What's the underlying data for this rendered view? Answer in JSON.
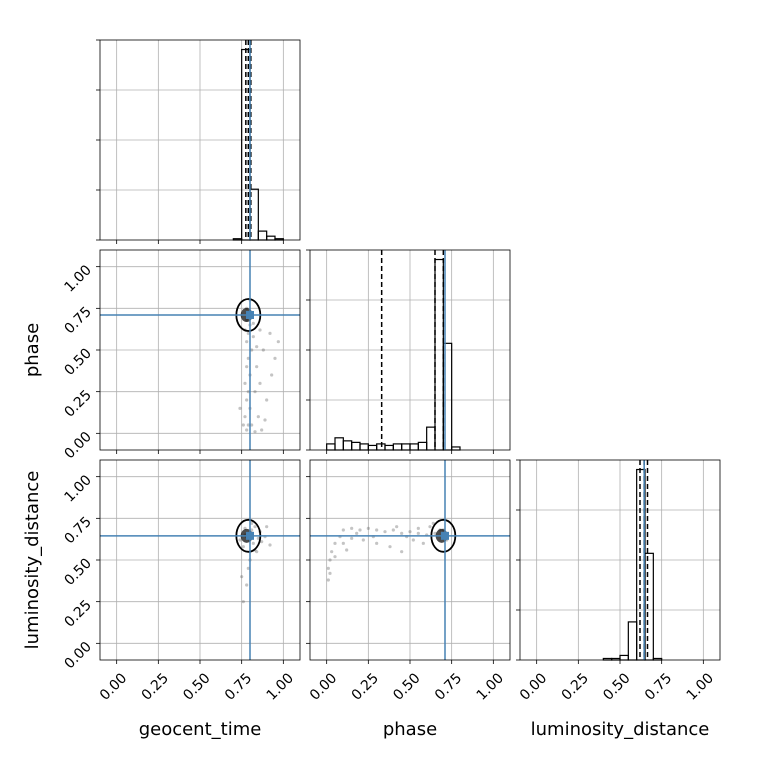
{
  "chart_data": {
    "type": "corner",
    "parameters": [
      {
        "name": "geocent_time",
        "label": "geocent_time",
        "truth": 0.8,
        "quantiles": [
          0.775,
          0.79,
          0.805
        ]
      },
      {
        "name": "phase",
        "label": "phase",
        "truth": 0.71,
        "quantiles": [
          0.33,
          0.65,
          0.7
        ]
      },
      {
        "name": "luminosity_distance",
        "label": "luminosity_distance",
        "truth": 0.645,
        "quantiles": [
          0.62,
          0.645,
          0.665
        ]
      }
    ],
    "xlim": [
      -0.1,
      1.1
    ],
    "ylim": [
      -0.1,
      1.1
    ],
    "ticks": [
      0.0,
      0.25,
      0.5,
      0.75,
      1.0
    ],
    "tick_labels": [
      "0.00",
      "0.25",
      "0.50",
      "0.75",
      "1.00"
    ],
    "truth_color": "#4682b4",
    "line_color": "#000000",
    "scatter_color": "#555555",
    "grid": true,
    "histograms": [
      {
        "parameter": "geocent_time",
        "bins": [
          {
            "lo": 0.7,
            "hi": 0.75,
            "v": 1
          },
          {
            "lo": 0.75,
            "hi": 0.8,
            "v": 150
          },
          {
            "lo": 0.8,
            "hi": 0.85,
            "v": 40
          },
          {
            "lo": 0.85,
            "hi": 0.9,
            "v": 7
          },
          {
            "lo": 0.9,
            "hi": 0.95,
            "v": 3
          },
          {
            "lo": 0.95,
            "hi": 1.0,
            "v": 1
          }
        ]
      },
      {
        "parameter": "phase",
        "bins": [
          {
            "lo": 0.0,
            "hi": 0.05,
            "v": 4
          },
          {
            "lo": 0.05,
            "hi": 0.1,
            "v": 8
          },
          {
            "lo": 0.1,
            "hi": 0.15,
            "v": 6
          },
          {
            "lo": 0.15,
            "hi": 0.2,
            "v": 5
          },
          {
            "lo": 0.2,
            "hi": 0.25,
            "v": 4
          },
          {
            "lo": 0.25,
            "hi": 0.3,
            "v": 3
          },
          {
            "lo": 0.3,
            "hi": 0.35,
            "v": 4
          },
          {
            "lo": 0.35,
            "hi": 0.4,
            "v": 3
          },
          {
            "lo": 0.4,
            "hi": 0.45,
            "v": 4
          },
          {
            "lo": 0.45,
            "hi": 0.5,
            "v": 4
          },
          {
            "lo": 0.5,
            "hi": 0.55,
            "v": 4
          },
          {
            "lo": 0.55,
            "hi": 0.6,
            "v": 5
          },
          {
            "lo": 0.6,
            "hi": 0.65,
            "v": 15
          },
          {
            "lo": 0.65,
            "hi": 0.7,
            "v": 125
          },
          {
            "lo": 0.7,
            "hi": 0.75,
            "v": 70
          },
          {
            "lo": 0.75,
            "hi": 0.8,
            "v": 2
          }
        ]
      },
      {
        "parameter": "luminosity_distance",
        "bins": [
          {
            "lo": 0.4,
            "hi": 0.45,
            "v": 1
          },
          {
            "lo": 0.45,
            "hi": 0.5,
            "v": 1
          },
          {
            "lo": 0.5,
            "hi": 0.55,
            "v": 3
          },
          {
            "lo": 0.55,
            "hi": 0.6,
            "v": 25
          },
          {
            "lo": 0.6,
            "hi": 0.65,
            "v": 125
          },
          {
            "lo": 0.65,
            "hi": 0.7,
            "v": 70
          },
          {
            "lo": 0.7,
            "hi": 0.75,
            "v": 1
          }
        ]
      }
    ],
    "scatter_panels": [
      {
        "x": "geocent_time",
        "y": "phase",
        "points": [
          [
            0.78,
            0.02
          ],
          [
            0.79,
            0.05
          ],
          [
            0.77,
            0.1
          ],
          [
            0.8,
            0.15
          ],
          [
            0.78,
            0.2
          ],
          [
            0.79,
            0.25
          ],
          [
            0.77,
            0.3
          ],
          [
            0.8,
            0.35
          ],
          [
            0.78,
            0.4
          ],
          [
            0.79,
            0.45
          ],
          [
            0.81,
            0.5
          ],
          [
            0.78,
            0.55
          ],
          [
            0.79,
            0.6
          ],
          [
            0.8,
            0.65
          ],
          [
            0.78,
            0.68
          ],
          [
            0.79,
            0.7
          ],
          [
            0.8,
            0.72
          ],
          [
            0.77,
            0.62
          ],
          [
            0.82,
            0.58
          ],
          [
            0.84,
            0.4
          ],
          [
            0.86,
            0.3
          ],
          [
            0.88,
            0.5
          ],
          [
            0.9,
            0.2
          ],
          [
            0.92,
            0.6
          ],
          [
            0.85,
            0.1
          ],
          [
            0.83,
            0.25
          ],
          [
            0.76,
            0.05
          ],
          [
            0.95,
            0.45
          ],
          [
            0.97,
            0.55
          ],
          [
            0.74,
            0.15
          ],
          [
            0.81,
            0.05
          ],
          [
            0.83,
            0.01
          ],
          [
            0.87,
            0.02
          ],
          [
            0.89,
            0.08
          ],
          [
            0.93,
            0.35
          ],
          [
            0.8,
            0.8
          ],
          [
            0.78,
            0.75
          ],
          [
            0.82,
            0.66
          ],
          [
            0.84,
            0.52
          ],
          [
            0.86,
            0.62
          ]
        ]
      },
      {
        "x": "geocent_time",
        "y": "luminosity_distance",
        "points": [
          [
            0.78,
            0.64
          ],
          [
            0.79,
            0.66
          ],
          [
            0.8,
            0.62
          ],
          [
            0.81,
            0.68
          ],
          [
            0.77,
            0.65
          ],
          [
            0.82,
            0.6
          ],
          [
            0.83,
            0.7
          ],
          [
            0.76,
            0.58
          ],
          [
            0.84,
            0.55
          ],
          [
            0.85,
            0.63
          ],
          [
            0.86,
            0.67
          ],
          [
            0.8,
            0.5
          ],
          [
            0.79,
            0.45
          ],
          [
            0.78,
            0.35
          ],
          [
            0.76,
            0.25
          ],
          [
            0.75,
            0.4
          ],
          [
            0.81,
            0.72
          ],
          [
            0.83,
            0.56
          ],
          [
            0.87,
            0.61
          ],
          [
            0.89,
            0.64
          ],
          [
            0.92,
            0.59
          ],
          [
            0.9,
            0.7
          ],
          [
            0.74,
            0.62
          ],
          [
            0.77,
            0.69
          ]
        ]
      },
      {
        "x": "phase",
        "y": "luminosity_distance",
        "points": [
          [
            0.01,
            0.45
          ],
          [
            0.02,
            0.5
          ],
          [
            0.03,
            0.55
          ],
          [
            0.05,
            0.6
          ],
          [
            0.08,
            0.64
          ],
          [
            0.1,
            0.68
          ],
          [
            0.15,
            0.69
          ],
          [
            0.2,
            0.68
          ],
          [
            0.25,
            0.69
          ],
          [
            0.3,
            0.68
          ],
          [
            0.35,
            0.67
          ],
          [
            0.4,
            0.68
          ],
          [
            0.45,
            0.66
          ],
          [
            0.5,
            0.67
          ],
          [
            0.55,
            0.66
          ],
          [
            0.6,
            0.65
          ],
          [
            0.65,
            0.66
          ],
          [
            0.7,
            0.64
          ],
          [
            0.72,
            0.62
          ],
          [
            0.68,
            0.68
          ],
          [
            0.62,
            0.7
          ],
          [
            0.58,
            0.6
          ],
          [
            0.52,
            0.62
          ],
          [
            0.45,
            0.55
          ],
          [
            0.38,
            0.58
          ],
          [
            0.3,
            0.6
          ],
          [
            0.22,
            0.62
          ],
          [
            0.15,
            0.63
          ],
          [
            0.1,
            0.6
          ],
          [
            0.05,
            0.52
          ],
          [
            0.02,
            0.42
          ],
          [
            0.01,
            0.38
          ],
          [
            0.12,
            0.56
          ],
          [
            0.18,
            0.66
          ],
          [
            0.28,
            0.64
          ],
          [
            0.42,
            0.7
          ],
          [
            0.48,
            0.64
          ],
          [
            0.55,
            0.69
          ],
          [
            0.64,
            0.72
          ],
          [
            0.7,
            0.68
          ]
        ]
      }
    ]
  }
}
